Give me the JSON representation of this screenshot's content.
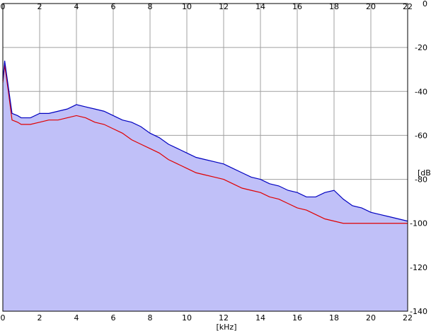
{
  "chart_data": {
    "type": "line",
    "title": "",
    "xlabel": "[kHz]",
    "ylabel": "[dB]",
    "xlim": [
      0,
      22
    ],
    "ylim": [
      -140,
      0
    ],
    "x_ticks": [
      "0",
      "2",
      "4",
      "6",
      "8",
      "10",
      "12",
      "14",
      "16",
      "18",
      "20",
      "22"
    ],
    "y_ticks": [
      "0",
      "-20",
      "-40",
      "-60",
      "-80",
      "-100",
      "-120",
      "-140"
    ],
    "grid": true,
    "legend": "none",
    "colors": {
      "background": "#ffffff",
      "area_fill": "#c0c0f8",
      "grid": "#a0a0a0",
      "blue_series": "#0000c0",
      "red_series": "#e00000"
    },
    "series": [
      {
        "color": "#0000c0",
        "x": [
          0.0,
          0.1,
          0.2,
          0.3,
          0.5,
          0.8,
          1.0,
          1.5,
          2.0,
          2.5,
          3.0,
          3.5,
          4.0,
          4.5,
          5.0,
          5.5,
          6.0,
          6.5,
          7.0,
          7.5,
          8.0,
          8.5,
          9.0,
          9.5,
          10.0,
          10.5,
          11.0,
          11.5,
          12.0,
          12.5,
          13.0,
          13.5,
          14.0,
          14.5,
          15.0,
          15.5,
          16.0,
          16.5,
          17.0,
          17.5,
          18.0,
          18.5,
          19.0,
          19.5,
          20.0,
          20.5,
          21.0,
          21.5,
          22.0
        ],
        "y": [
          -35,
          -26,
          -32,
          -38,
          -50,
          -51,
          -52,
          -52,
          -50,
          -50,
          -49,
          -48,
          -46,
          -47,
          -48,
          -49,
          -51,
          -53,
          -54,
          -56,
          -59,
          -61,
          -64,
          -66,
          -68,
          -70,
          -71,
          -72,
          -73,
          -75,
          -77,
          -79,
          -80,
          -82,
          -83,
          -85,
          -86,
          -88,
          -88,
          -86,
          -85,
          -89,
          -92,
          -93,
          -95,
          -96,
          -97,
          -98,
          -99
        ]
      },
      {
        "color": "#e00000",
        "x": [
          0.0,
          0.1,
          0.2,
          0.3,
          0.5,
          0.8,
          1.0,
          1.5,
          2.0,
          2.5,
          3.0,
          3.5,
          4.0,
          4.5,
          5.0,
          5.5,
          6.0,
          6.5,
          7.0,
          7.5,
          8.0,
          8.5,
          9.0,
          9.5,
          10.0,
          10.5,
          11.0,
          11.5,
          12.0,
          12.5,
          13.0,
          13.5,
          14.0,
          14.5,
          15.0,
          15.5,
          16.0,
          16.5,
          17.0,
          17.5,
          18.0,
          18.5,
          19.0,
          19.5,
          20.0,
          20.5,
          21.0,
          21.5,
          22.0
        ],
        "y": [
          -36,
          -28,
          -34,
          -40,
          -53,
          -54,
          -55,
          -55,
          -54,
          -53,
          -53,
          -52,
          -51,
          -52,
          -54,
          -55,
          -57,
          -59,
          -62,
          -64,
          -66,
          -68,
          -71,
          -73,
          -75,
          -77,
          -78,
          -79,
          -80,
          -82,
          -84,
          -85,
          -86,
          -88,
          -89,
          -91,
          -93,
          -94,
          -96,
          -98,
          -99,
          -100,
          -100,
          -100,
          -100,
          -100,
          -100,
          -100,
          -100
        ]
      }
    ]
  }
}
